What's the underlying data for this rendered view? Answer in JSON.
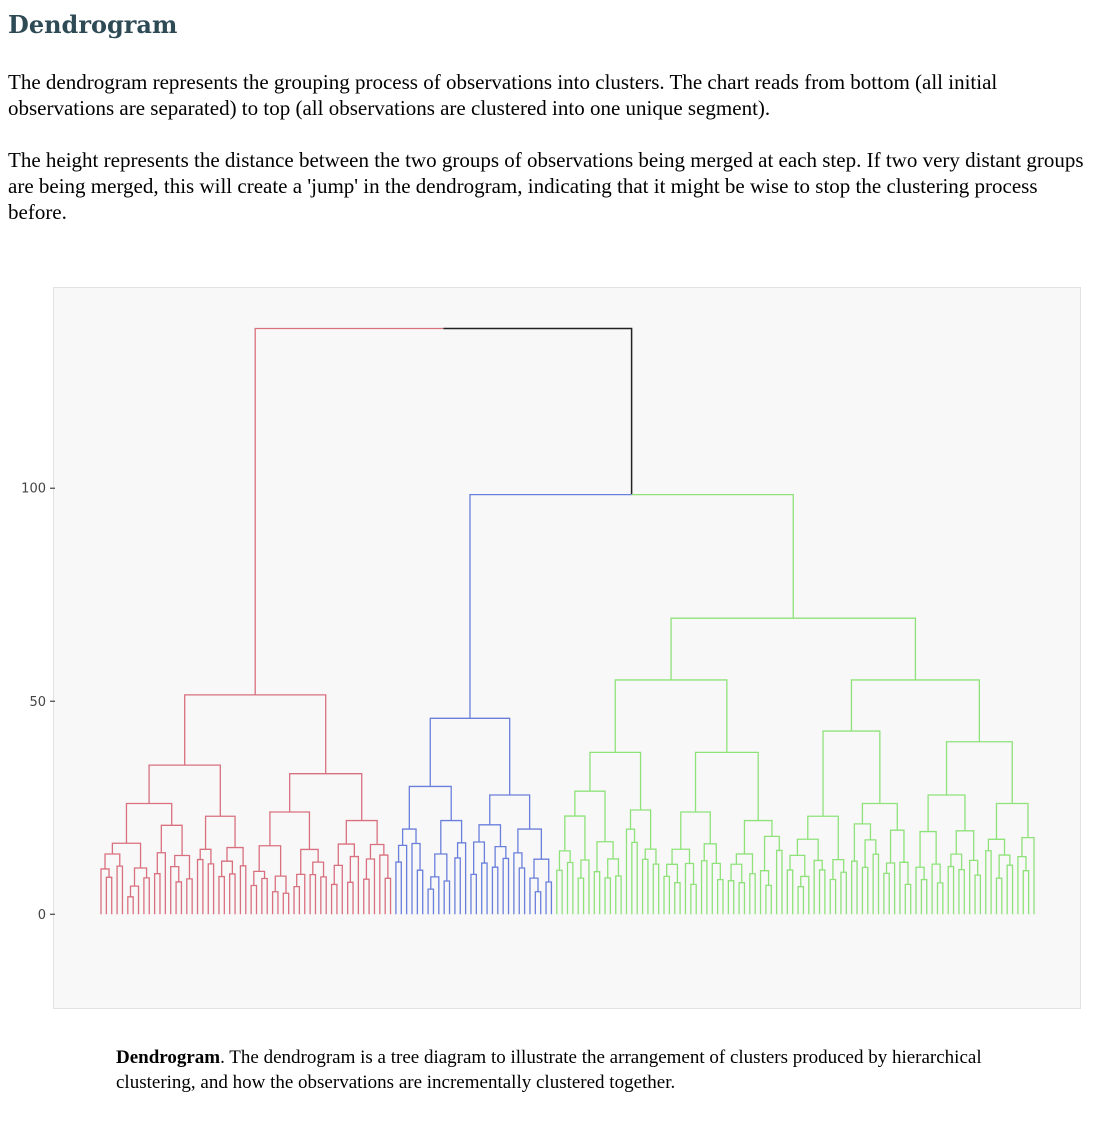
{
  "page": {
    "title": "Dendrogram",
    "intro_paragraph_1": "The dendrogram represents the grouping process of observations into clusters. The chart reads from bottom (all initial observations are separated) to top (all observations are clustered into one unique segment).",
    "intro_paragraph_2": "The height represents the distance between the two groups of observations being merged at each step. If two very distant groups are being merged, this will create a 'jump' in the dendrogram, indicating that it might be wise to stop the clustering process before.",
    "caption_title": "Dendrogram",
    "caption_text": ". The dendrogram is a tree diagram to illustrate the arrangement of clusters produced by hierarchical clustering, and how the observations are incrementally clustered together."
  },
  "chart_data": {
    "type": "dendrogram",
    "title": "",
    "xlabel": "",
    "ylabel": "",
    "ylim": [
      -22,
      147
    ],
    "yticks": [
      0,
      50,
      100
    ],
    "grid": false,
    "link_color_above_threshold": "#222222",
    "clusters": [
      {
        "color": "#d9707f",
        "leaves": 55
      },
      {
        "color": "#6a7fdb",
        "leaves": 30
      },
      {
        "color": "#8fe27a",
        "leaves": 90
      }
    ],
    "top_merges": [
      {
        "left": "red",
        "right": "blue+green",
        "height": 137.5
      },
      {
        "left": "blue",
        "right": "green",
        "height": 98.5
      }
    ],
    "subcluster_merges": [
      {
        "cluster": "red",
        "height": 51.5
      },
      {
        "cluster": "red",
        "height": 35
      },
      {
        "cluster": "red",
        "height": 33
      },
      {
        "cluster": "blue",
        "height": 46
      },
      {
        "cluster": "blue",
        "height": 30
      },
      {
        "cluster": "blue",
        "height": 28
      },
      {
        "cluster": "green",
        "height": 69.5
      },
      {
        "cluster": "green",
        "height": 55
      },
      {
        "cluster": "green",
        "height": 55
      },
      {
        "cluster": "green",
        "height": 38
      },
      {
        "cluster": "green",
        "height": 40.5
      }
    ]
  }
}
